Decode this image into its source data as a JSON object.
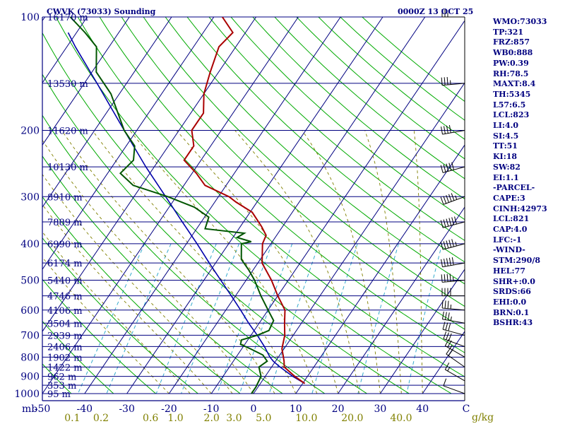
{
  "header": {
    "station": "CWVK (73033) Sounding",
    "datetime": "0000Z 13 OCT 25"
  },
  "indices": [
    "WMO:73033",
    "TP:321",
    "FRZ:857",
    "WB0:888",
    "PW:0.39",
    "RH:78.5",
    "MAXT:8.4",
    "TH:5345",
    "L57:6.5",
    "LCL:823",
    "LI:4.0",
    "SI:4.5",
    "TT:51",
    "KI:18",
    "SW:82",
    "EI:1.1",
    "-PARCEL-",
    "CAPE:3",
    "CINH:42973",
    "LCL:821",
    "CAP:4.0",
    "LFC:-1",
    "-WIND-",
    "STM:290/8",
    "HEL:77",
    "SHR+:0.0",
    "SRDS:66",
    "EHI:0.0",
    "BRN:0.1",
    "BSHR:43"
  ],
  "colors": {
    "isobar": "#000080",
    "isotherm": "#000080",
    "dry_adiabat": "#00aa00",
    "moist_adiabat": "#808000",
    "mixing_ratio": "#33aacc",
    "temperature": "#aa0000",
    "dewpoint": "#005500",
    "parcel": "#0000aa",
    "wind": "#000000",
    "axis_label": "#000080",
    "mixing_label": "#808000"
  },
  "chart_data": {
    "type": "skew-t",
    "title": "CWVK (73033) Sounding",
    "pressure_unit": "mb",
    "mixing_unit": "g/kg",
    "p_range": [
      100,
      1000
    ],
    "t_range_at_base": [
      -50,
      50
    ],
    "pressure_ticks": [
      "100",
      "200",
      "300",
      "400",
      "500",
      "600",
      "700",
      "800",
      "900",
      "1000"
    ],
    "temperature_ticks": [
      "-50",
      "-40",
      "-30",
      "-20",
      "-10",
      "0",
      "10",
      "20",
      "30",
      "40"
    ],
    "mixing_ratio_labels": [
      "0.1",
      "0.2",
      "0.6",
      "1.0",
      "2.0",
      "3.0",
      "5.0",
      "10.0",
      "20.0",
      "40.0"
    ],
    "height_levels": [
      {
        "p": 100,
        "label": "16170 m"
      },
      {
        "p": 150,
        "label": "13530 m"
      },
      {
        "p": 200,
        "label": "11620 m"
      },
      {
        "p": 250,
        "label": "10130 m"
      },
      {
        "p": 300,
        "label": "8910 m"
      },
      {
        "p": 350,
        "label": "7889 m"
      },
      {
        "p": 400,
        "label": "6990 m"
      },
      {
        "p": 450,
        "label": "6174 m"
      },
      {
        "p": 500,
        "label": "5440 m"
      },
      {
        "p": 550,
        "label": "4746 m"
      },
      {
        "p": 600,
        "label": "4106 m"
      },
      {
        "p": 650,
        "label": "3504 m"
      },
      {
        "p": 700,
        "label": "2939 m"
      },
      {
        "p": 750,
        "label": "2406 m"
      },
      {
        "p": 800,
        "label": "1902 m"
      },
      {
        "p": 850,
        "label": "1422 m"
      },
      {
        "p": 900,
        "label": "962 m"
      },
      {
        "p": 950,
        "label": "353 m"
      },
      {
        "p": 1000,
        "label": "95 m"
      }
    ],
    "temperature_profile": [
      [
        940,
        10.5
      ],
      [
        900,
        7.0
      ],
      [
        850,
        3.0
      ],
      [
        820,
        2.0
      ],
      [
        800,
        1.2
      ],
      [
        760,
        -0.5
      ],
      [
        700,
        -2.0
      ],
      [
        650,
        -4.0
      ],
      [
        600,
        -6.0
      ],
      [
        550,
        -10.0
      ],
      [
        500,
        -14.0
      ],
      [
        450,
        -19.0
      ],
      [
        400,
        -22.0
      ],
      [
        380,
        -22.5
      ],
      [
        360,
        -25.0
      ],
      [
        330,
        -29.5
      ],
      [
        310,
        -35.0
      ],
      [
        300,
        -37.5
      ],
      [
        280,
        -45.0
      ],
      [
        260,
        -49.0
      ],
      [
        240,
        -54.0
      ],
      [
        220,
        -54.0
      ],
      [
        200,
        -57.0
      ],
      [
        180,
        -57.0
      ],
      [
        160,
        -60.0
      ],
      [
        140,
        -62.0
      ],
      [
        120,
        -64.0
      ],
      [
        110,
        -63.0
      ],
      [
        100,
        -68.0
      ]
    ],
    "dewpoint_profile": [
      [
        1000,
        -0.5
      ],
      [
        960,
        -0.5
      ],
      [
        900,
        -1.0
      ],
      [
        850,
        -3.0
      ],
      [
        820,
        -2.0
      ],
      [
        790,
        -4.0
      ],
      [
        760,
        -8.0
      ],
      [
        740,
        -11.0
      ],
      [
        720,
        -11.5
      ],
      [
        700,
        -8.5
      ],
      [
        680,
        -6.5
      ],
      [
        640,
        -7.0
      ],
      [
        600,
        -10.0
      ],
      [
        550,
        -14.0
      ],
      [
        500,
        -18.0
      ],
      [
        470,
        -21.0
      ],
      [
        440,
        -24.5
      ],
      [
        400,
        -27.0
      ],
      [
        395,
        -25.0
      ],
      [
        385,
        -29.0
      ],
      [
        375,
        -28.0
      ],
      [
        365,
        -38.0
      ],
      [
        340,
        -39.0
      ],
      [
        320,
        -44.0
      ],
      [
        300,
        -52.0
      ],
      [
        280,
        -62.0
      ],
      [
        260,
        -67.0
      ],
      [
        240,
        -66.0
      ],
      [
        220,
        -68.0
      ],
      [
        200,
        -73.0
      ],
      [
        160,
        -82.0
      ],
      [
        140,
        -89.0
      ],
      [
        120,
        -93.0
      ],
      [
        110,
        -98.0
      ],
      [
        100,
        -104.0
      ]
    ],
    "parcel_profile": [
      [
        940,
        10.5
      ],
      [
        900,
        6.5
      ],
      [
        850,
        2.0
      ],
      [
        821,
        -0.5
      ],
      [
        800,
        -2.0
      ],
      [
        750,
        -5.0
      ],
      [
        700,
        -8.5
      ],
      [
        650,
        -12.5
      ],
      [
        600,
        -16.5
      ],
      [
        550,
        -21.0
      ],
      [
        500,
        -26.0
      ],
      [
        450,
        -31.5
      ],
      [
        400,
        -37.5
      ],
      [
        350,
        -44.5
      ],
      [
        300,
        -52.5
      ],
      [
        250,
        -62.0
      ],
      [
        200,
        -73.0
      ],
      [
        150,
        -87.0
      ],
      [
        120,
        -98.0
      ],
      [
        110,
        -102.0
      ]
    ],
    "wind_barbs": [
      {
        "p": 1000,
        "dir": 290,
        "kt": 10
      },
      {
        "p": 925,
        "dir": 300,
        "kt": 15
      },
      {
        "p": 850,
        "dir": 305,
        "kt": 20
      },
      {
        "p": 800,
        "dir": 300,
        "kt": 25
      },
      {
        "p": 750,
        "dir": 290,
        "kt": 30
      },
      {
        "p": 700,
        "dir": 285,
        "kt": 30
      },
      {
        "p": 650,
        "dir": 280,
        "kt": 35
      },
      {
        "p": 600,
        "dir": 275,
        "kt": 35
      },
      {
        "p": 550,
        "dir": 270,
        "kt": 40
      },
      {
        "p": 500,
        "dir": 265,
        "kt": 45
      },
      {
        "p": 450,
        "dir": 260,
        "kt": 50
      },
      {
        "p": 400,
        "dir": 255,
        "kt": 55
      },
      {
        "p": 350,
        "dir": 255,
        "kt": 60
      },
      {
        "p": 300,
        "dir": 250,
        "kt": 55
      },
      {
        "p": 250,
        "dir": 255,
        "kt": 50
      },
      {
        "p": 200,
        "dir": 260,
        "kt": 40
      },
      {
        "p": 150,
        "dir": 265,
        "kt": 35
      },
      {
        "p": 100,
        "dir": 270,
        "kt": 25
      }
    ]
  }
}
